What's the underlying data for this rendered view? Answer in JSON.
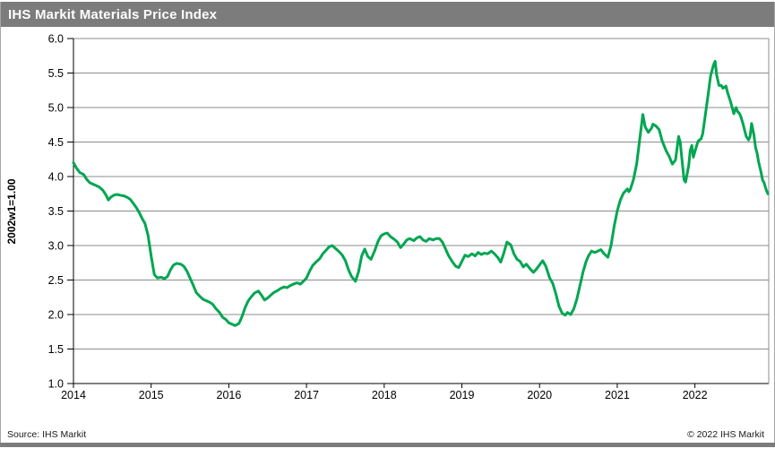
{
  "title_bar": {
    "title": "IHS Markit Materials Price Index",
    "bg_color": "#7C7C7C",
    "text_color": "#FFFFFF"
  },
  "footer": {
    "source": "Source: IHS Markit",
    "copyright": "© 2022  IHS Markit"
  },
  "chart_data": {
    "type": "line",
    "title": "IHS Markit Materials Price Index",
    "xlabel": "",
    "ylabel": "2002w1=1.00",
    "ylim": [
      1.0,
      6.0
    ],
    "xlim": [
      2014,
      2022.95
    ],
    "yticks": [
      1.0,
      1.5,
      2.0,
      2.5,
      3.0,
      3.5,
      4.0,
      4.5,
      5.0,
      5.5,
      6.0
    ],
    "xticks": [
      2014,
      2015,
      2016,
      2017,
      2018,
      2019,
      2020,
      2021,
      2022
    ],
    "grid": true,
    "legend": "none",
    "line_color": "#00A651",
    "grid_color": "#8C8C8C",
    "axis_color": "#000000",
    "series": [
      {
        "name": "IHS Markit Materials Price Index",
        "x": [
          2014.0,
          2014.04,
          2014.08,
          2014.13,
          2014.17,
          2014.21,
          2014.25,
          2014.29,
          2014.33,
          2014.38,
          2014.42,
          2014.45,
          2014.48,
          2014.52,
          2014.56,
          2014.6,
          2014.65,
          2014.69,
          2014.73,
          2014.77,
          2014.81,
          2014.85,
          2014.88,
          2014.92,
          2014.96,
          2015.0,
          2015.04,
          2015.08,
          2015.13,
          2015.17,
          2015.21,
          2015.25,
          2015.29,
          2015.33,
          2015.38,
          2015.42,
          2015.46,
          2015.5,
          2015.54,
          2015.58,
          2015.63,
          2015.67,
          2015.71,
          2015.75,
          2015.79,
          2015.83,
          2015.88,
          2015.92,
          2015.96,
          2016.0,
          2016.04,
          2016.08,
          2016.13,
          2016.17,
          2016.21,
          2016.25,
          2016.29,
          2016.33,
          2016.38,
          2016.42,
          2016.46,
          2016.5,
          2016.54,
          2016.58,
          2016.63,
          2016.67,
          2016.71,
          2016.75,
          2016.79,
          2016.83,
          2016.88,
          2016.92,
          2016.96,
          2017.0,
          2017.04,
          2017.08,
          2017.13,
          2017.17,
          2017.21,
          2017.25,
          2017.29,
          2017.33,
          2017.38,
          2017.42,
          2017.46,
          2017.5,
          2017.54,
          2017.58,
          2017.63,
          2017.67,
          2017.71,
          2017.75,
          2017.79,
          2017.83,
          2017.88,
          2017.92,
          2017.96,
          2018.0,
          2018.04,
          2018.08,
          2018.13,
          2018.17,
          2018.21,
          2018.25,
          2018.29,
          2018.33,
          2018.38,
          2018.42,
          2018.46,
          2018.5,
          2018.54,
          2018.58,
          2018.63,
          2018.67,
          2018.71,
          2018.75,
          2018.79,
          2018.83,
          2018.88,
          2018.92,
          2018.96,
          2019.0,
          2019.04,
          2019.08,
          2019.13,
          2019.17,
          2019.21,
          2019.25,
          2019.29,
          2019.33,
          2019.38,
          2019.42,
          2019.46,
          2019.5,
          2019.54,
          2019.58,
          2019.63,
          2019.67,
          2019.71,
          2019.75,
          2019.79,
          2019.83,
          2019.88,
          2019.92,
          2019.96,
          2020.0,
          2020.04,
          2020.08,
          2020.13,
          2020.17,
          2020.21,
          2020.25,
          2020.29,
          2020.33,
          2020.36,
          2020.4,
          2020.44,
          2020.48,
          2020.52,
          2020.56,
          2020.6,
          2020.63,
          2020.67,
          2020.71,
          2020.75,
          2020.79,
          2020.83,
          2020.88,
          2020.92,
          2020.96,
          2021.0,
          2021.04,
          2021.08,
          2021.13,
          2021.15,
          2021.17,
          2021.21,
          2021.25,
          2021.29,
          2021.33,
          2021.36,
          2021.4,
          2021.44,
          2021.46,
          2021.5,
          2021.54,
          2021.58,
          2021.63,
          2021.67,
          2021.69,
          2021.71,
          2021.75,
          2021.79,
          2021.81,
          2021.83,
          2021.86,
          2021.88,
          2021.92,
          2021.94,
          2021.96,
          2021.98,
          2022.0,
          2022.02,
          2022.04,
          2022.08,
          2022.1,
          2022.13,
          2022.17,
          2022.2,
          2022.24,
          2022.26,
          2022.28,
          2022.31,
          2022.34,
          2022.36,
          2022.4,
          2022.42,
          2022.46,
          2022.48,
          2022.5,
          2022.53,
          2022.55,
          2022.57,
          2022.59,
          2022.62,
          2022.64,
          2022.66,
          2022.69,
          2022.71,
          2022.73,
          2022.76,
          2022.78,
          2022.8,
          2022.82,
          2022.85,
          2022.87,
          2022.89,
          2022.92,
          2022.94
        ],
        "y": [
          4.2,
          4.12,
          4.06,
          4.03,
          3.96,
          3.91,
          3.89,
          3.87,
          3.85,
          3.8,
          3.73,
          3.66,
          3.7,
          3.73,
          3.74,
          3.73,
          3.72,
          3.7,
          3.67,
          3.61,
          3.55,
          3.47,
          3.4,
          3.32,
          3.15,
          2.85,
          2.58,
          2.53,
          2.54,
          2.52,
          2.55,
          2.65,
          2.72,
          2.74,
          2.73,
          2.7,
          2.63,
          2.53,
          2.43,
          2.32,
          2.26,
          2.22,
          2.2,
          2.18,
          2.15,
          2.09,
          2.03,
          1.96,
          1.93,
          1.88,
          1.86,
          1.84,
          1.87,
          1.97,
          2.1,
          2.2,
          2.26,
          2.31,
          2.34,
          2.28,
          2.21,
          2.24,
          2.28,
          2.32,
          2.35,
          2.38,
          2.4,
          2.39,
          2.42,
          2.44,
          2.46,
          2.44,
          2.48,
          2.53,
          2.63,
          2.71,
          2.77,
          2.81,
          2.88,
          2.93,
          2.98,
          3.0,
          2.95,
          2.91,
          2.86,
          2.78,
          2.65,
          2.55,
          2.48,
          2.62,
          2.85,
          2.95,
          2.84,
          2.8,
          2.93,
          3.06,
          3.14,
          3.17,
          3.18,
          3.13,
          3.09,
          3.05,
          2.97,
          3.02,
          3.08,
          3.1,
          3.07,
          3.11,
          3.13,
          3.08,
          3.06,
          3.1,
          3.08,
          3.1,
          3.1,
          3.05,
          2.95,
          2.85,
          2.76,
          2.7,
          2.68,
          2.77,
          2.86,
          2.84,
          2.88,
          2.85,
          2.9,
          2.87,
          2.89,
          2.88,
          2.92,
          2.88,
          2.83,
          2.76,
          2.89,
          3.05,
          3.01,
          2.88,
          2.8,
          2.77,
          2.69,
          2.73,
          2.66,
          2.61,
          2.66,
          2.72,
          2.78,
          2.7,
          2.53,
          2.45,
          2.3,
          2.12,
          2.02,
          1.99,
          2.03,
          2.0,
          2.08,
          2.22,
          2.42,
          2.62,
          2.77,
          2.85,
          2.92,
          2.9,
          2.92,
          2.94,
          2.88,
          2.83,
          3.0,
          3.28,
          3.5,
          3.66,
          3.76,
          3.82,
          3.78,
          3.82,
          3.96,
          4.18,
          4.55,
          4.9,
          4.72,
          4.64,
          4.7,
          4.76,
          4.73,
          4.68,
          4.51,
          4.37,
          4.29,
          4.23,
          4.18,
          4.24,
          4.58,
          4.5,
          4.28,
          3.95,
          3.92,
          4.16,
          4.38,
          4.45,
          4.28,
          4.36,
          4.44,
          4.51,
          4.55,
          4.62,
          4.86,
          5.19,
          5.45,
          5.62,
          5.67,
          5.47,
          5.32,
          5.32,
          5.28,
          5.31,
          5.22,
          5.08,
          5.0,
          4.91,
          5.0,
          4.94,
          4.92,
          4.87,
          4.76,
          4.67,
          4.58,
          4.53,
          4.58,
          4.77,
          4.6,
          4.42,
          4.34,
          4.21,
          4.07,
          3.95,
          3.91,
          3.8,
          3.75
        ]
      }
    ]
  }
}
